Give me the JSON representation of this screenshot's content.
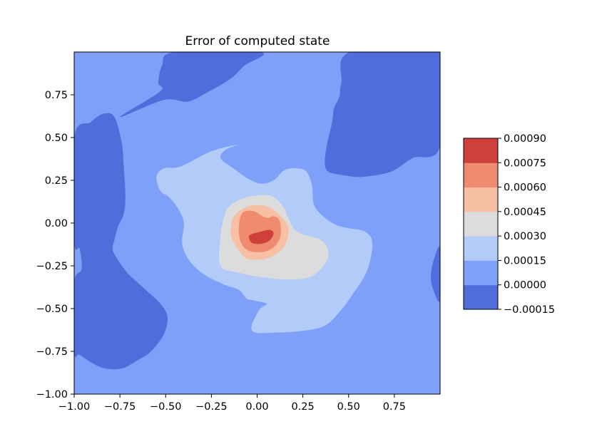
{
  "chart_data": {
    "type": "heatmap",
    "subtype": "filled-contour",
    "title": "Error of computed state",
    "xlabel": "",
    "ylabel": "",
    "xlim": [
      -1.0,
      1.0
    ],
    "ylim": [
      -1.0,
      1.0
    ],
    "x_ticks": [
      -1.0,
      -0.75,
      -0.5,
      -0.25,
      0.0,
      0.25,
      0.5,
      0.75
    ],
    "x_tick_labels": [
      "−1.00",
      "−0.75",
      "−0.50",
      "−0.25",
      "0.00",
      "0.25",
      "0.50",
      "0.75"
    ],
    "y_ticks": [
      -1.0,
      -0.75,
      -0.5,
      -0.25,
      0.0,
      0.25,
      0.5,
      0.75
    ],
    "y_tick_labels": [
      "−1.00",
      "−0.75",
      "−0.50",
      "−0.25",
      "0.00",
      "0.25",
      "0.50",
      "0.75"
    ],
    "colormap": "coolwarm",
    "colorbar": {
      "placement": "right",
      "levels": [
        -0.00015,
        0.0,
        0.00015,
        0.0003,
        0.00045,
        0.0006,
        0.00075,
        0.0009
      ],
      "tick_labels": [
        "−0.00015",
        "0.00000",
        "0.00015",
        "0.00030",
        "0.00045",
        "0.00060",
        "0.00075",
        "0.00090"
      ],
      "colors": [
        "#516ddb",
        "#7fa0f8",
        "#b3cbf9",
        "#dcdcdc",
        "#f7bfa4",
        "#ef8c6f",
        "#d0403b"
      ]
    },
    "background_band": 1,
    "regions": [
      {
        "band": 0,
        "points": [
          [
            -0.75,
            0.62
          ],
          [
            -0.51,
            0.72
          ],
          [
            -0.38,
            0.71
          ],
          [
            -0.28,
            0.76
          ],
          [
            -0.15,
            0.84
          ],
          [
            -0.07,
            0.92
          ],
          [
            0.02,
            1.0
          ],
          [
            -0.45,
            1.0
          ],
          [
            -0.52,
            0.92
          ],
          [
            -0.54,
            0.82
          ],
          [
            -0.53,
            0.77
          ]
        ]
      },
      {
        "band": 0,
        "points": [
          [
            0.51,
            1.0
          ],
          [
            1.0,
            1.0
          ],
          [
            1.0,
            0.45
          ],
          [
            0.85,
            0.38
          ],
          [
            0.73,
            0.3
          ],
          [
            0.57,
            0.27
          ],
          [
            0.47,
            0.28
          ],
          [
            0.39,
            0.3
          ],
          [
            0.37,
            0.35
          ],
          [
            0.38,
            0.45
          ],
          [
            0.41,
            0.59
          ],
          [
            0.42,
            0.67
          ],
          [
            0.45,
            0.74
          ],
          [
            0.46,
            0.82
          ]
        ]
      },
      {
        "band": 0,
        "points": [
          [
            -1.0,
            0.5
          ],
          [
            -0.91,
            0.59
          ],
          [
            -0.84,
            0.64
          ],
          [
            -0.78,
            0.62
          ],
          [
            -0.74,
            0.47
          ],
          [
            -0.73,
            0.35
          ],
          [
            -0.72,
            0.15
          ],
          [
            -0.73,
            0.05
          ],
          [
            -0.76,
            -0.02
          ],
          [
            -0.78,
            -0.1
          ],
          [
            -0.79,
            -0.15
          ],
          [
            -0.77,
            -0.2
          ],
          [
            -0.71,
            -0.29
          ],
          [
            -0.62,
            -0.38
          ],
          [
            -0.53,
            -0.47
          ],
          [
            -0.49,
            -0.55
          ],
          [
            -0.51,
            -0.65
          ],
          [
            -0.58,
            -0.75
          ],
          [
            -0.65,
            -0.8
          ],
          [
            -0.74,
            -0.85
          ],
          [
            -0.83,
            -0.85
          ],
          [
            -0.9,
            -0.82
          ],
          [
            -0.97,
            -0.77
          ],
          [
            -1.0,
            -0.75
          ],
          [
            -1.0,
            -0.35
          ],
          [
            -0.96,
            -0.27
          ],
          [
            -0.97,
            -0.15
          ],
          [
            -1.0,
            -0.1
          ]
        ]
      },
      {
        "band": 0,
        "points": [
          [
            1.0,
            -0.15
          ],
          [
            0.97,
            -0.2
          ],
          [
            0.95,
            -0.3
          ],
          [
            0.96,
            -0.38
          ],
          [
            1.0,
            -0.45
          ]
        ]
      },
      {
        "band": 2,
        "points": [
          [
            -0.42,
            0.33
          ],
          [
            -0.25,
            0.42
          ],
          [
            -0.1,
            0.46
          ],
          [
            -0.17,
            0.43
          ],
          [
            -0.2,
            0.38
          ],
          [
            -0.13,
            0.32
          ],
          [
            -0.05,
            0.26
          ],
          [
            0.02,
            0.23
          ],
          [
            0.09,
            0.25
          ],
          [
            0.15,
            0.31
          ],
          [
            0.22,
            0.32
          ],
          [
            0.27,
            0.3
          ],
          [
            0.3,
            0.22
          ],
          [
            0.31,
            0.11
          ],
          [
            0.36,
            0.04
          ],
          [
            0.43,
            -0.01
          ],
          [
            0.5,
            -0.03
          ],
          [
            0.59,
            -0.05
          ],
          [
            0.63,
            -0.12
          ],
          [
            0.6,
            -0.28
          ],
          [
            0.52,
            -0.42
          ],
          [
            0.45,
            -0.52
          ],
          [
            0.37,
            -0.6
          ],
          [
            0.25,
            -0.63
          ],
          [
            0.1,
            -0.64
          ],
          [
            -0.01,
            -0.64
          ],
          [
            -0.03,
            -0.6
          ],
          [
            0.01,
            -0.51
          ],
          [
            0.03,
            -0.49
          ],
          [
            0.05,
            -0.47
          ],
          [
            -0.03,
            -0.45
          ],
          [
            -0.06,
            -0.44
          ],
          [
            -0.1,
            -0.39
          ],
          [
            -0.18,
            -0.36
          ],
          [
            -0.29,
            -0.3
          ],
          [
            -0.37,
            -0.22
          ],
          [
            -0.41,
            -0.12
          ],
          [
            -0.4,
            0.0
          ],
          [
            -0.43,
            0.08
          ],
          [
            -0.48,
            0.15
          ],
          [
            -0.53,
            0.19
          ],
          [
            -0.55,
            0.27
          ],
          [
            -0.51,
            0.32
          ]
        ]
      },
      {
        "band": 3,
        "points": [
          [
            -0.2,
            -0.25
          ],
          [
            -0.2,
            -0.08
          ],
          [
            -0.18,
            0.04
          ],
          [
            -0.15,
            0.1
          ],
          [
            -0.06,
            0.15
          ],
          [
            0.07,
            0.16
          ],
          [
            0.14,
            0.1
          ],
          [
            0.17,
            0.03
          ],
          [
            0.22,
            -0.05
          ],
          [
            0.35,
            -0.1
          ],
          [
            0.39,
            -0.17
          ],
          [
            0.37,
            -0.24
          ],
          [
            0.3,
            -0.31
          ],
          [
            0.2,
            -0.33
          ],
          [
            0.05,
            -0.32
          ],
          [
            -0.1,
            -0.29
          ]
        ]
      },
      {
        "band": 4,
        "points": [
          [
            -0.14,
            0.0
          ],
          [
            -0.11,
            0.06
          ],
          [
            -0.04,
            0.1
          ],
          [
            0.05,
            0.1
          ],
          [
            0.12,
            0.05
          ],
          [
            0.17,
            -0.02
          ],
          [
            0.16,
            -0.11
          ],
          [
            0.12,
            -0.17
          ],
          [
            0.04,
            -0.21
          ],
          [
            -0.05,
            -0.21
          ],
          [
            -0.1,
            -0.16
          ],
          [
            -0.14,
            -0.08
          ]
        ]
      },
      {
        "band": 5,
        "points": [
          [
            -0.1,
            -0.02
          ],
          [
            -0.08,
            0.06
          ],
          [
            -0.02,
            0.07
          ],
          [
            0.03,
            0.04
          ],
          [
            0.06,
            0.03
          ],
          [
            0.09,
            0.04
          ],
          [
            0.12,
            0.02
          ],
          [
            0.13,
            -0.04
          ],
          [
            0.12,
            -0.1
          ],
          [
            0.08,
            -0.15
          ],
          [
            0.02,
            -0.17
          ],
          [
            -0.05,
            -0.16
          ],
          [
            -0.09,
            -0.11
          ]
        ]
      },
      {
        "band": 6,
        "points": [
          [
            -0.04,
            -0.07
          ],
          [
            0.02,
            -0.05
          ],
          [
            0.07,
            -0.04
          ],
          [
            0.09,
            -0.06
          ],
          [
            0.07,
            -0.1
          ],
          [
            0.03,
            -0.12
          ],
          [
            -0.02,
            -0.12
          ],
          [
            -0.04,
            -0.1
          ]
        ]
      }
    ]
  }
}
